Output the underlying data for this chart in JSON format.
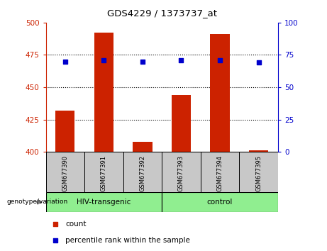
{
  "title": "GDS4229 / 1373737_at",
  "samples": [
    "GSM677390",
    "GSM677391",
    "GSM677392",
    "GSM677393",
    "GSM677394",
    "GSM677395"
  ],
  "counts": [
    432,
    492,
    408,
    444,
    491,
    401
  ],
  "percentiles": [
    70,
    71,
    70,
    71,
    71,
    69
  ],
  "ylim_left": [
    400,
    500
  ],
  "ylim_right": [
    0,
    100
  ],
  "yticks_left": [
    400,
    425,
    450,
    475,
    500
  ],
  "yticks_right": [
    0,
    25,
    50,
    75,
    100
  ],
  "bar_color": "#CC2200",
  "dot_color": "#0000CC",
  "bar_width": 0.5,
  "grid_color": "black",
  "left_axis_color": "#CC2200",
  "right_axis_color": "#0000CC",
  "background_xticklabel": "#C8C8C8",
  "group_color": "#90EE90",
  "legend_count_label": "count",
  "legend_percentile_label": "percentile rank within the sample",
  "genotype_label": "genotype/variation",
  "group1_label": "HIV-transgenic",
  "group2_label": "control"
}
